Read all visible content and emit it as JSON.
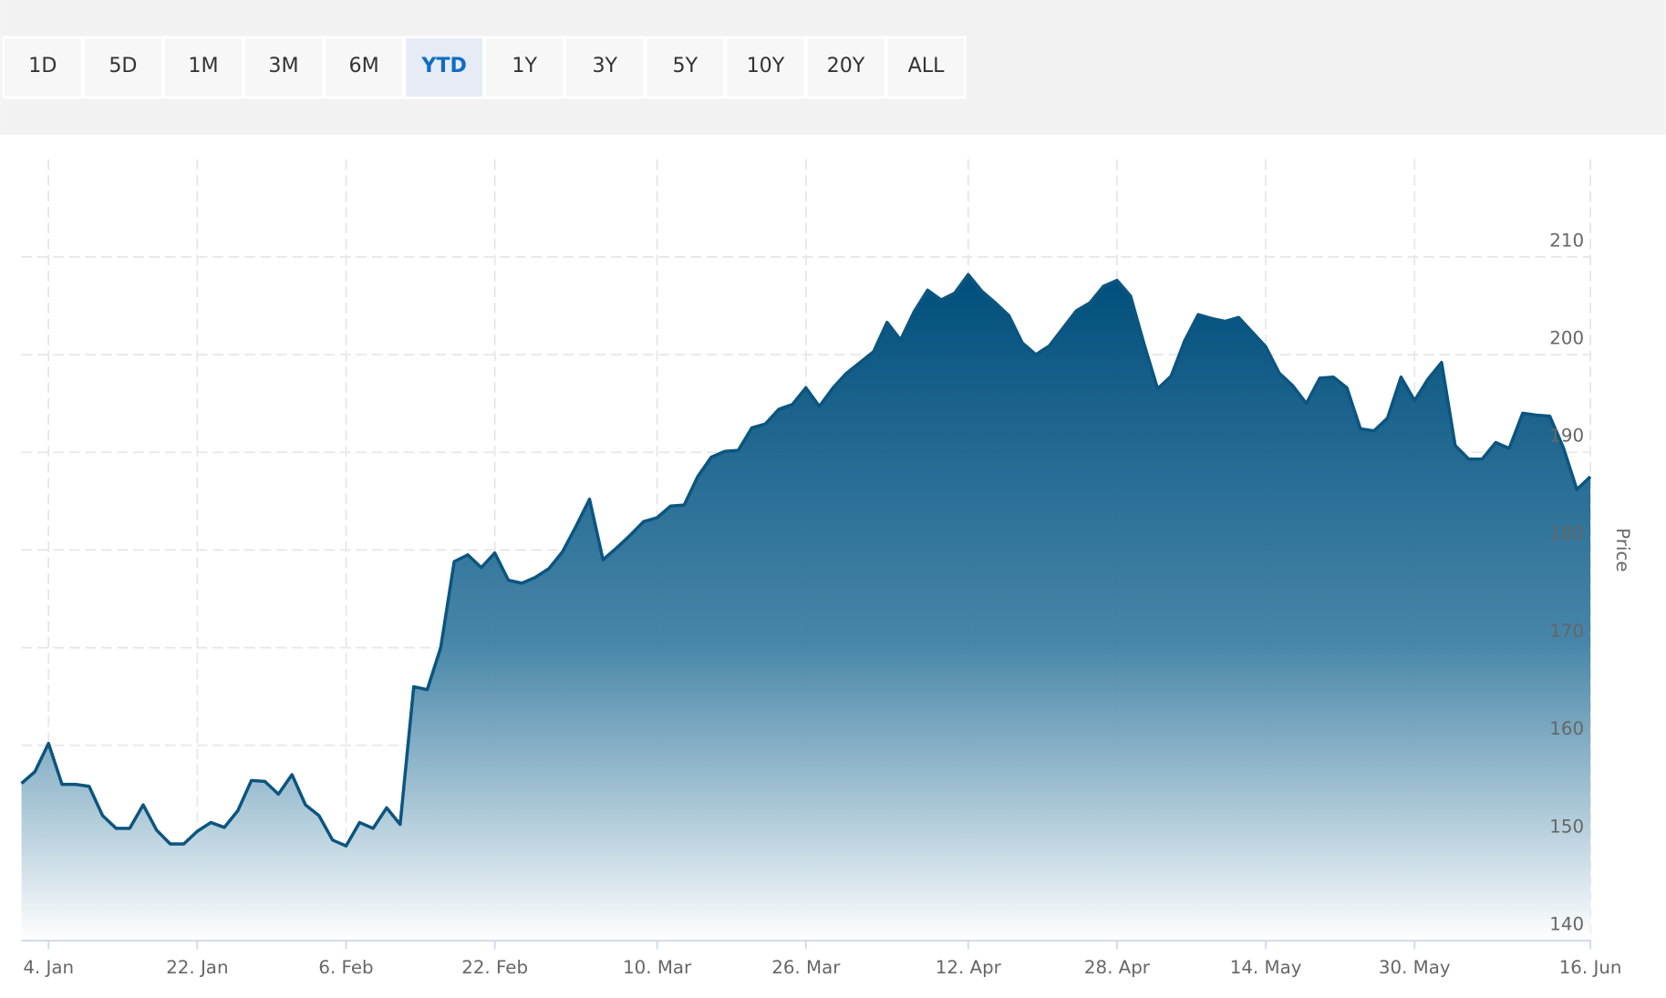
{
  "range_selector": {
    "buttons": [
      "1D",
      "5D",
      "1M",
      "3M",
      "6M",
      "YTD",
      "1Y",
      "3Y",
      "5Y",
      "10Y",
      "20Y",
      "ALL"
    ],
    "selected": 5
  },
  "chart_data": {
    "type": "area",
    "y_label": "Price",
    "color": "#0b5580",
    "categories": [
      null,
      null,
      "4. Jan",
      null,
      null,
      null,
      null,
      null,
      null,
      null,
      null,
      null,
      null,
      "22. Jan",
      null,
      null,
      null,
      null,
      null,
      null,
      null,
      null,
      null,
      null,
      "6. Feb",
      null,
      null,
      null,
      null,
      null,
      null,
      null,
      null,
      null,
      null,
      "22. Feb",
      null,
      null,
      null,
      null,
      null,
      null,
      null,
      null,
      null,
      null,
      null,
      "10. Mar",
      null,
      null,
      null,
      null,
      null,
      null,
      null,
      null,
      null,
      null,
      "26. Mar",
      null,
      null,
      null,
      null,
      null,
      null,
      null,
      null,
      null,
      null,
      null,
      "12. Apr",
      null,
      null,
      null,
      null,
      null,
      null,
      null,
      null,
      null,
      null,
      "28. Apr",
      null,
      null,
      null,
      null,
      null,
      null,
      null,
      null,
      null,
      null,
      "14. May",
      null,
      null,
      null,
      null,
      null,
      null,
      null,
      null,
      null,
      null,
      "30. May",
      null,
      null,
      null,
      null,
      null,
      null,
      null,
      null,
      null,
      null,
      null,
      null,
      "16. Jun"
    ],
    "values": [
      156.1,
      157.3,
      160.2,
      156.0,
      156.0,
      155.8,
      152.8,
      151.5,
      151.5,
      153.9,
      151.3,
      149.9,
      149.9,
      151.2,
      152.1,
      151.6,
      153.3,
      156.4,
      156.3,
      155.0,
      157.0,
      153.9,
      152.8,
      150.3,
      149.7,
      152.1,
      151.5,
      153.6,
      151.9,
      166.0,
      165.7,
      170.0,
      178.8,
      179.5,
      178.2,
      179.7,
      176.9,
      176.6,
      177.2,
      178.1,
      179.8,
      182.4,
      185.2,
      179.0,
      180.2,
      181.5,
      182.9,
      183.3,
      184.5,
      184.6,
      187.5,
      189.5,
      190.1,
      190.2,
      192.5,
      192.9,
      194.4,
      194.9,
      196.6,
      194.7,
      196.6,
      198.1,
      199.2,
      200.3,
      203.3,
      201.5,
      204.4,
      206.6,
      205.6,
      206.3,
      208.2,
      206.5,
      205.3,
      204.0,
      201.2,
      200.0,
      200.9,
      202.7,
      204.5,
      205.3,
      207.0,
      207.6,
      206.0,
      201.1,
      196.5,
      197.8,
      201.4,
      204.1,
      203.7,
      203.4,
      203.8,
      202.3,
      200.8,
      198.1,
      196.8,
      195.0,
      197.6,
      197.7,
      196.6,
      192.4,
      192.2,
      193.5,
      197.7,
      195.3,
      197.5,
      199.2,
      190.7,
      189.3,
      189.3,
      191.0,
      190.4,
      194.0,
      193.8,
      193.7,
      190.5,
      186.2,
      187.5
    ],
    "ylim": [
      140,
      220
    ],
    "yticks": [
      140,
      150,
      160,
      170,
      180,
      190,
      200,
      210
    ],
    "grid": true
  }
}
